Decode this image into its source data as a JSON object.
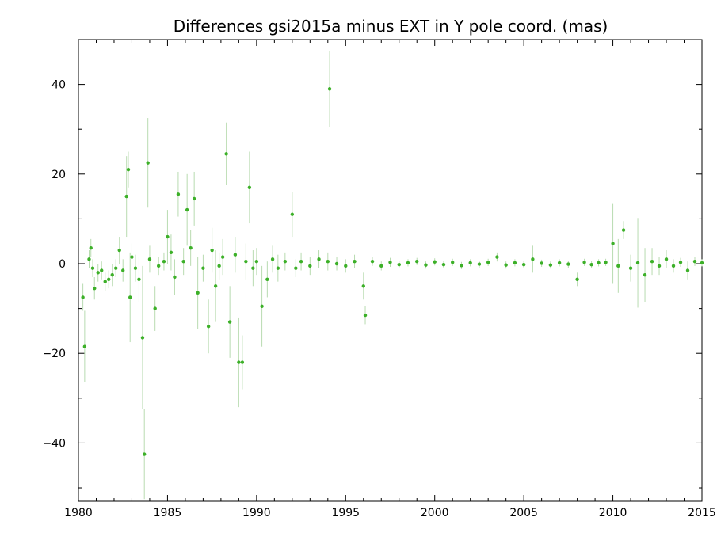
{
  "chart_data": {
    "type": "scatter",
    "title": "Differences gsi2015a minus EXT in Y pole coord. (mas)",
    "xlabel": "",
    "ylabel": "",
    "xlim": [
      1980,
      2015
    ],
    "ylim": [
      -53,
      50
    ],
    "x_ticks": [
      1980,
      1985,
      1990,
      1995,
      2000,
      2005,
      2010,
      2015
    ],
    "y_ticks": [
      40,
      20,
      0,
      -20,
      -40
    ],
    "y_tick_labels": [
      "40",
      "20",
      "0",
      "−20",
      "−40"
    ],
    "grid": false,
    "legend": "none",
    "colors": {
      "points": "#3cb028",
      "error_bars": "#b8dbb0",
      "axes": "#000000"
    },
    "series": [
      {
        "x": [
          1980.25,
          1980.35,
          1980.6,
          1980.7,
          1980.8,
          1980.9,
          1981.1,
          1981.3,
          1981.5,
          1981.7,
          1981.9,
          1982.1,
          1982.3,
          1982.5,
          1982.7,
          1982.8,
          1982.9,
          1983.0,
          1983.2,
          1983.4,
          1983.6,
          1983.7,
          1983.9,
          1984.0,
          1984.3,
          1984.5,
          1984.8,
          1985.0,
          1985.2,
          1985.4,
          1985.6,
          1985.9,
          1986.1,
          1986.3,
          1986.5,
          1986.7,
          1987.0,
          1987.3,
          1987.5,
          1987.7,
          1987.9,
          1988.1,
          1988.3,
          1988.5,
          1988.8,
          1989.0,
          1989.2,
          1989.4,
          1989.6,
          1989.8,
          1990.0,
          1990.3,
          1990.6,
          1990.9,
          1991.2,
          1991.6,
          1992.0,
          1992.2,
          1992.5,
          1993.0,
          1993.5,
          1994.0,
          1994.1,
          1994.5,
          1995.0,
          1995.5,
          1996.0,
          1996.1,
          1996.5,
          1997.0,
          1997.5,
          1998.0,
          1998.5,
          1999.0,
          1999.5,
          2000.0,
          2000.5,
          2001.0,
          2001.5,
          2002.0,
          2002.5,
          2003.0,
          2003.5,
          2004.0,
          2004.5,
          2005.0,
          2005.5,
          2006.0,
          2006.5,
          2007.0,
          2007.5,
          2008.0,
          2008.4,
          2008.8,
          2009.2,
          2009.6,
          2010.0,
          2010.3,
          2010.6,
          2011.0,
          2011.4,
          2011.8,
          2012.2,
          2012.6,
          2013.0,
          2013.4,
          2013.8,
          2014.2,
          2014.6,
          2015.0
        ],
        "y": [
          -7.5,
          -18.5,
          1.0,
          3.5,
          -1.0,
          -5.5,
          -2.0,
          -1.5,
          -4.0,
          -3.5,
          -2.5,
          -1.0,
          3.0,
          -1.5,
          15.0,
          21.0,
          -7.5,
          1.5,
          -1.0,
          -3.5,
          -16.5,
          -42.5,
          22.5,
          1.0,
          -10.0,
          -0.5,
          0.5,
          6.0,
          2.5,
          -3.0,
          15.5,
          0.5,
          12.0,
          3.5,
          14.5,
          -6.5,
          -1.0,
          -14.0,
          3.0,
          -5.0,
          -0.5,
          1.5,
          24.5,
          -13.0,
          2.0,
          -22.0,
          -22.0,
          0.5,
          17.0,
          -1.0,
          0.5,
          -9.5,
          -3.5,
          1.0,
          -1.0,
          0.5,
          11.0,
          -1.0,
          0.5,
          -0.5,
          1.0,
          0.5,
          39.0,
          0.0,
          -0.5,
          0.5,
          -5.0,
          -11.5,
          0.5,
          -0.5,
          0.3,
          -0.2,
          0.2,
          0.5,
          -0.3,
          0.4,
          -0.2,
          0.3,
          -0.4,
          0.2,
          -0.1,
          0.3,
          1.5,
          -0.3,
          0.2,
          -0.2,
          1.0,
          0.1,
          -0.3,
          0.2,
          -0.1,
          -3.5,
          0.3,
          -0.2,
          0.2,
          0.3,
          4.5,
          -0.5,
          7.5,
          -1.0,
          0.2,
          -2.5,
          0.5,
          -0.5,
          1.0,
          -0.5,
          0.3,
          -1.5,
          0.5,
          0.2
        ],
        "err": [
          3.0,
          8.0,
          2.0,
          2.0,
          2.0,
          2.5,
          2.0,
          2.0,
          2.0,
          2.0,
          2.5,
          2.0,
          3.0,
          2.5,
          9.0,
          4.0,
          10.0,
          3.0,
          3.0,
          5.0,
          16.0,
          10.0,
          10.0,
          3.0,
          5.0,
          2.0,
          2.0,
          6.0,
          4.0,
          4.0,
          5.0,
          3.0,
          8.0,
          4.0,
          6.0,
          8.0,
          3.0,
          6.0,
          5.0,
          8.0,
          3.0,
          4.0,
          7.0,
          8.0,
          4.0,
          10.0,
          6.0,
          4.0,
          8.0,
          4.0,
          3.0,
          9.0,
          4.0,
          3.0,
          3.0,
          2.0,
          5.0,
          2.0,
          2.0,
          2.0,
          2.0,
          2.0,
          8.5,
          1.5,
          1.5,
          1.5,
          3.0,
          2.0,
          1.0,
          1.0,
          1.0,
          0.8,
          0.8,
          0.8,
          0.8,
          0.8,
          0.8,
          0.8,
          0.8,
          0.8,
          0.8,
          0.8,
          1.0,
          0.8,
          0.8,
          0.8,
          3.0,
          0.8,
          0.8,
          0.8,
          0.8,
          1.5,
          0.8,
          0.8,
          0.8,
          0.8,
          9.0,
          6.0,
          2.0,
          3.0,
          10.0,
          6.0,
          3.0,
          2.0,
          2.0,
          1.5,
          1.0,
          2.0,
          1.0,
          0.8
        ]
      }
    ]
  }
}
